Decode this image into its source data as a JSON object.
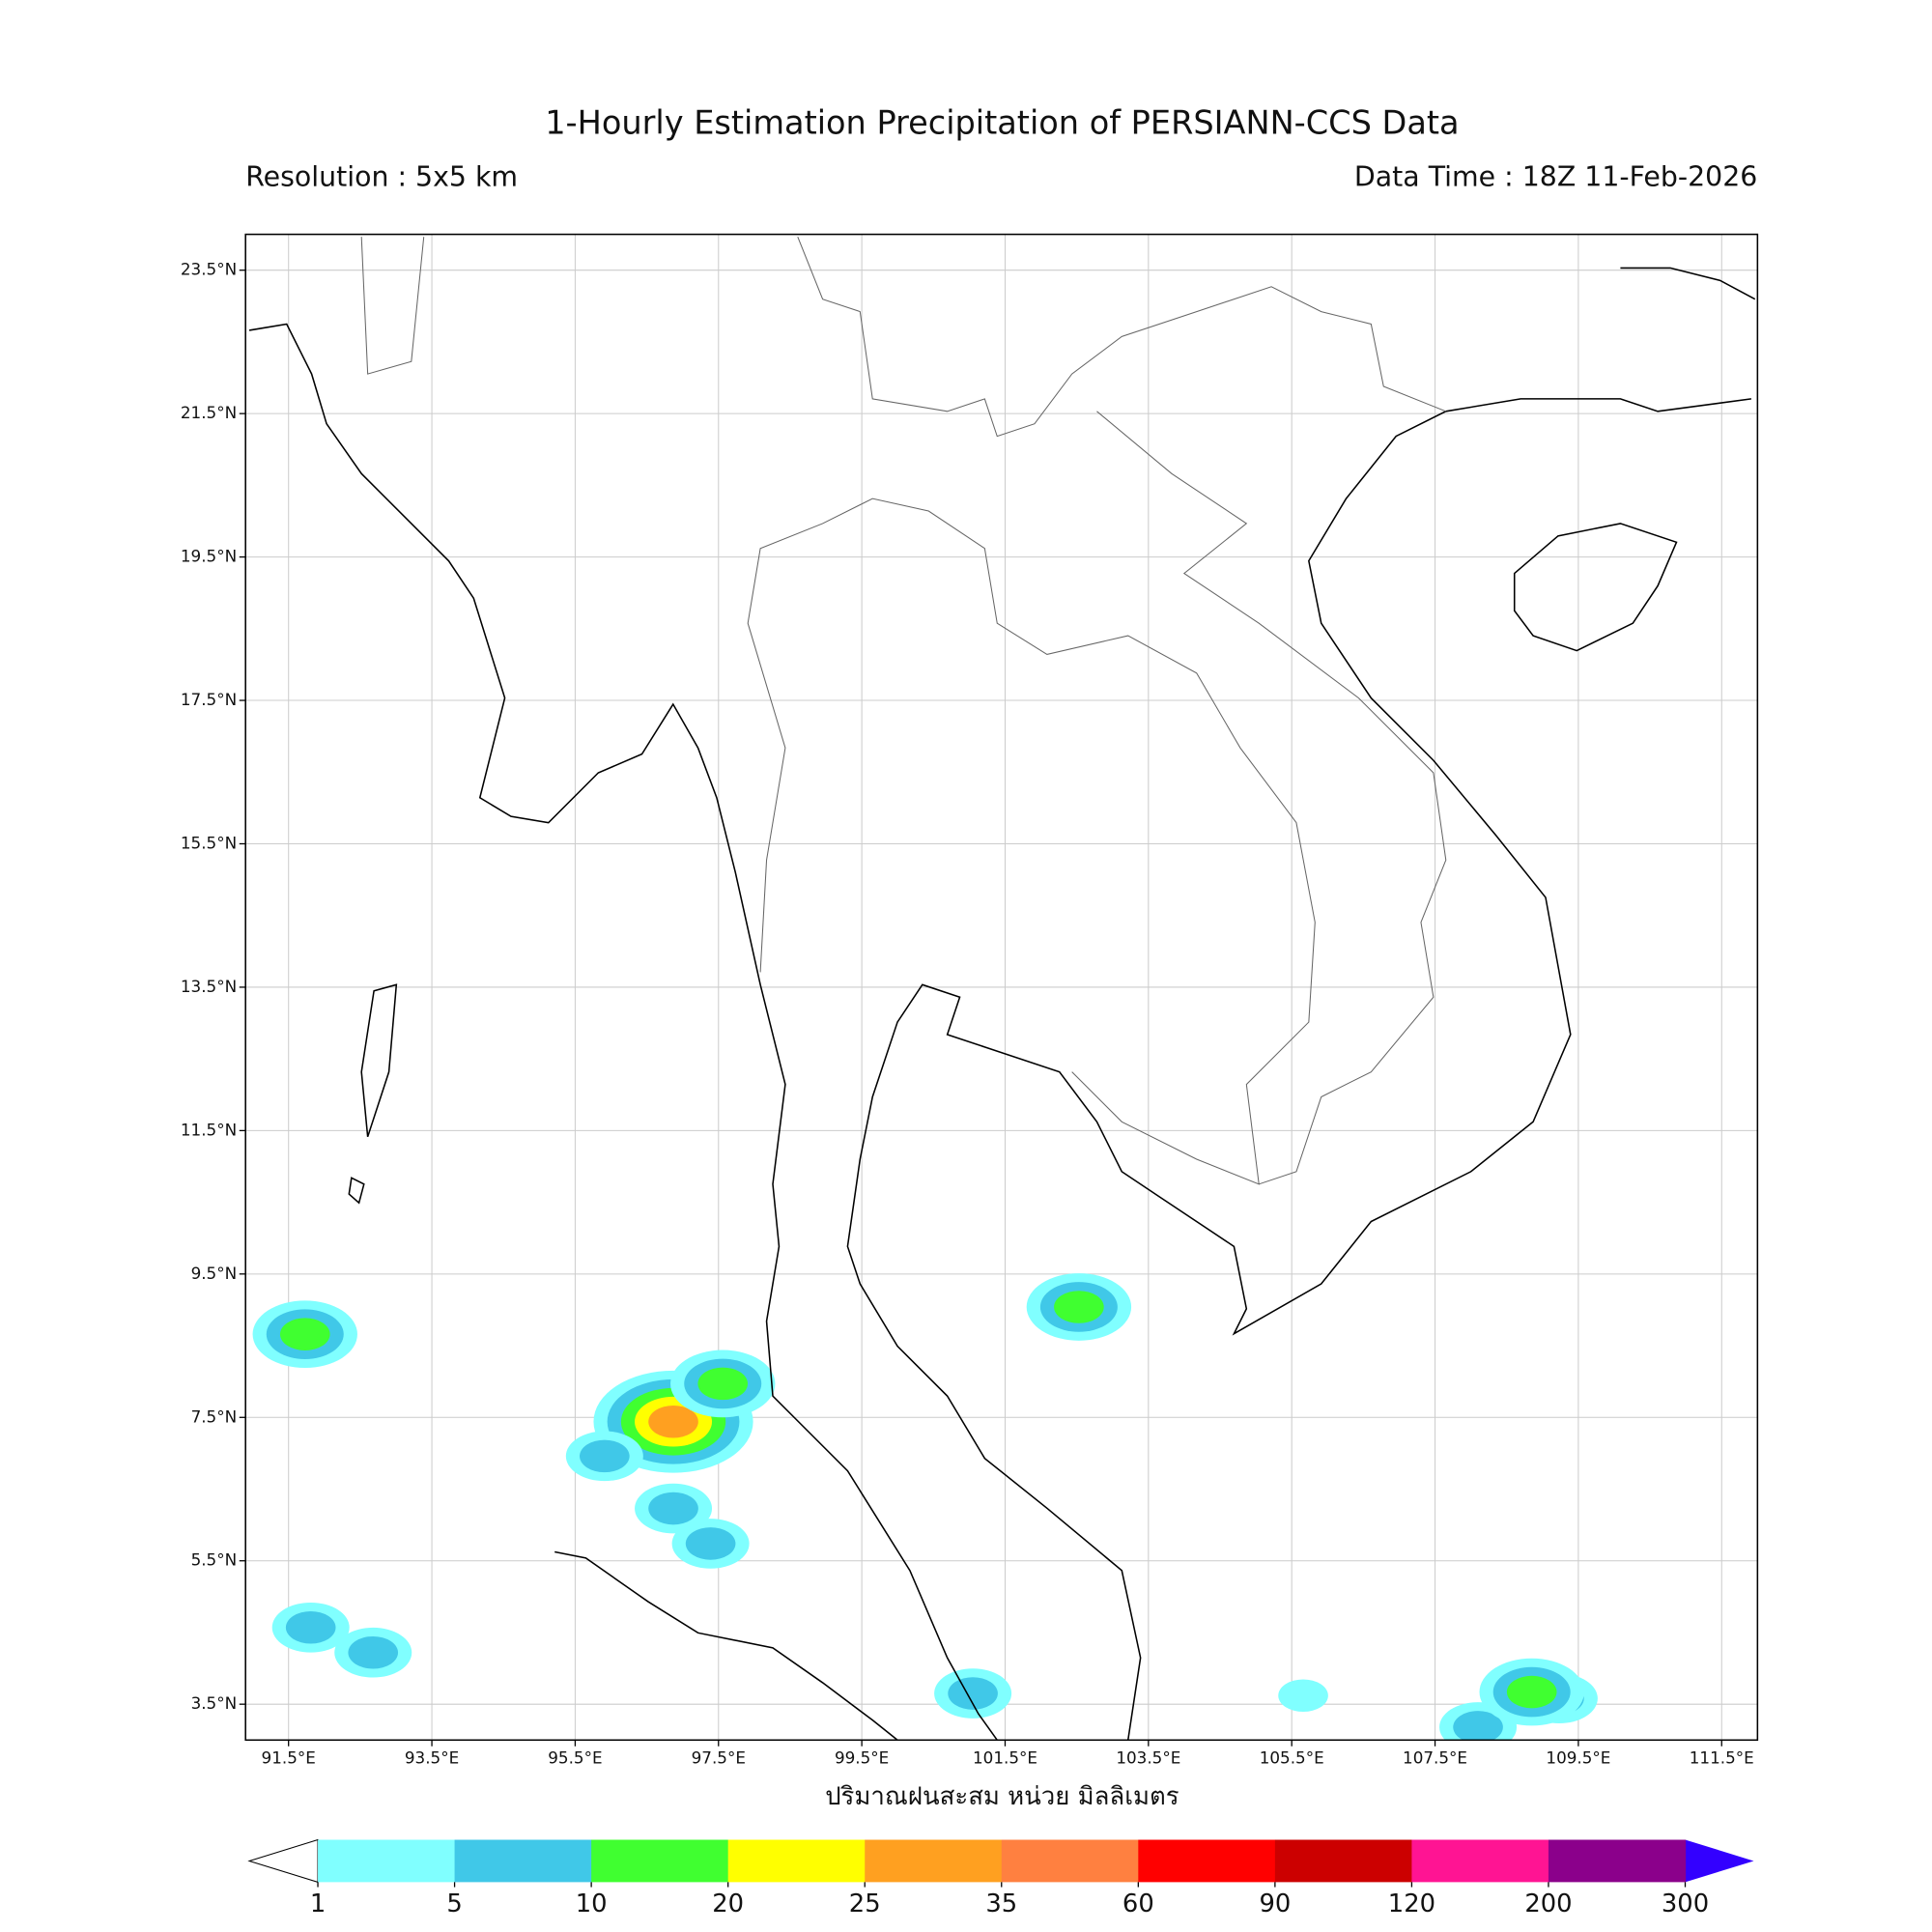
{
  "header": {
    "title": "1-Hourly Estimation Precipitation of PERSIANN-CCS Data",
    "resolution": "Resolution : 5x5 km",
    "data_time": "Data Time : 18Z 11-Feb-2026"
  },
  "map": {
    "xlim": [
      90.9,
      112.0
    ],
    "ylim": [
      3.0,
      24.0
    ],
    "grid": true,
    "xticks": [
      {
        "value": 91.5,
        "label": "91.5°E"
      },
      {
        "value": 93.5,
        "label": "93.5°E"
      },
      {
        "value": 95.5,
        "label": "95.5°E"
      },
      {
        "value": 97.5,
        "label": "97.5°E"
      },
      {
        "value": 99.5,
        "label": "99.5°E"
      },
      {
        "value": 101.5,
        "label": "101.5°E"
      },
      {
        "value": 103.5,
        "label": "103.5°E"
      },
      {
        "value": 105.5,
        "label": "105.5°E"
      },
      {
        "value": 107.5,
        "label": "107.5°E"
      },
      {
        "value": 109.5,
        "label": "109.5°E"
      },
      {
        "value": 111.5,
        "label": "111.5°E"
      }
    ],
    "yticks": [
      {
        "value": 3.5,
        "label": "3.5°N"
      },
      {
        "value": 5.5,
        "label": "5.5°N"
      },
      {
        "value": 7.5,
        "label": "7.5°N"
      },
      {
        "value": 9.5,
        "label": "9.5°N"
      },
      {
        "value": 11.5,
        "label": "11.5°N"
      },
      {
        "value": 13.5,
        "label": "13.5°N"
      },
      {
        "value": 15.5,
        "label": "15.5°N"
      },
      {
        "value": 17.5,
        "label": "17.5°N"
      },
      {
        "value": 19.5,
        "label": "19.5°N"
      },
      {
        "value": 21.5,
        "label": "21.5°N"
      },
      {
        "value": 23.5,
        "label": "23.5°N"
      }
    ],
    "xlabel": "ปริมาณฝนสะสม หน่วย มิลลิเมตร",
    "rain_cells": [
      {
        "lon": 96.87,
        "lat": 7.44,
        "mm": 25
      },
      {
        "lon": 97.56,
        "lat": 7.97,
        "mm": 10
      },
      {
        "lon": 91.73,
        "lat": 8.66,
        "mm": 10
      },
      {
        "lon": 102.53,
        "lat": 9.04,
        "mm": 10
      },
      {
        "lon": 96.87,
        "lat": 6.23,
        "mm": 5
      },
      {
        "lon": 97.39,
        "lat": 5.74,
        "mm": 5
      },
      {
        "lon": 101.05,
        "lat": 3.65,
        "mm": 5
      },
      {
        "lon": 108.1,
        "lat": 3.18,
        "mm": 5
      },
      {
        "lon": 109.23,
        "lat": 3.58,
        "mm": 5
      },
      {
        "lon": 95.91,
        "lat": 6.96,
        "mm": 5
      },
      {
        "lon": 91.81,
        "lat": 4.57,
        "mm": 5
      },
      {
        "lon": 92.68,
        "lat": 4.22,
        "mm": 5
      },
      {
        "lon": 105.66,
        "lat": 3.62,
        "mm": 1
      },
      {
        "lon": 108.85,
        "lat": 3.67,
        "mm": 10
      }
    ]
  },
  "colorbar": {
    "levels": [
      1,
      5,
      10,
      20,
      25,
      35,
      60,
      90,
      120,
      200,
      300
    ],
    "colors": [
      "#80ffff",
      "#40c8e8",
      "#40ff30",
      "#ffff00",
      "#ffa020",
      "#ff8040",
      "#ff0000",
      "#cc0000",
      "#ff1493",
      "#8b008b"
    ],
    "under_color": "#ffffff",
    "over_color": "#3300ff"
  }
}
